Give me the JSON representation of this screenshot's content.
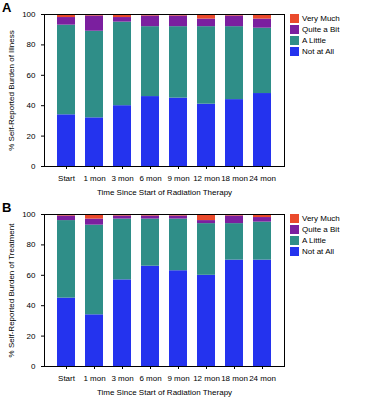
{
  "chart_data": [
    {
      "type": "bar",
      "title": "A",
      "stacked": true,
      "x_label": "Time Since Start of Radiation Therapy",
      "y_label": "% Self-Reported Burden of Illness",
      "categories": [
        "Start",
        "1 mon",
        "3 mon",
        "6 mon",
        "9 mon",
        "12 mon",
        "18 mon",
        "24 mon"
      ],
      "series": [
        {
          "name": "Not at All",
          "color": "#2433ee",
          "values": [
            34,
            32,
            40,
            46,
            45,
            41,
            44,
            48
          ]
        },
        {
          "name": "A Little",
          "color": "#2f8e88",
          "values": [
            59,
            57,
            55,
            46,
            47,
            51,
            48,
            43
          ]
        },
        {
          "name": "Quite a Bit",
          "color": "#7b1f9f",
          "values": [
            5,
            10,
            3,
            7,
            7,
            5,
            7,
            6
          ]
        },
        {
          "name": "Very Much",
          "color": "#ea4a2c",
          "values": [
            2,
            1,
            2,
            1,
            1,
            3,
            1,
            3
          ]
        }
      ],
      "ylim": [
        0,
        100
      ],
      "yticks": [
        0,
        20,
        40,
        60,
        80,
        100
      ],
      "legend": "right"
    },
    {
      "type": "bar",
      "title": "B",
      "stacked": true,
      "x_label": "Time Since Start of Radiation Therapy",
      "y_label": "% Self-Reported Burden of Treatment",
      "categories": [
        "Start",
        "1 mon",
        "3 mon",
        "6 mon",
        "9 mon",
        "12 mon",
        "18 mon",
        "24 mon"
      ],
      "series": [
        {
          "name": "Not at All",
          "color": "#2433ee",
          "values": [
            45,
            34,
            57,
            66,
            63,
            60,
            70,
            70
          ]
        },
        {
          "name": "A Little",
          "color": "#2f8e88",
          "values": [
            51,
            59,
            40,
            31,
            34,
            34,
            24,
            25
          ]
        },
        {
          "name": "Quite a Bit",
          "color": "#7b1f9f",
          "values": [
            3,
            4,
            2,
            2,
            2,
            2,
            5,
            3
          ]
        },
        {
          "name": "Very Much",
          "color": "#ea4a2c",
          "values": [
            1,
            3,
            1,
            1,
            1,
            4,
            1,
            2
          ]
        }
      ],
      "ylim": [
        0,
        100
      ],
      "yticks": [
        0,
        20,
        40,
        60,
        80,
        100
      ],
      "legend": "right"
    }
  ]
}
